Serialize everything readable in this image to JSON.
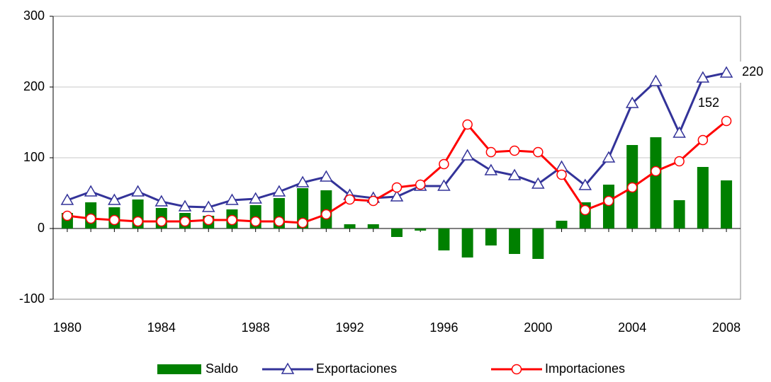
{
  "chart_data": {
    "type": "combo",
    "x": [
      1980,
      1981,
      1982,
      1983,
      1984,
      1985,
      1986,
      1987,
      1988,
      1989,
      1990,
      1991,
      1992,
      1993,
      1994,
      1995,
      1996,
      1997,
      1998,
      1999,
      2000,
      2001,
      2002,
      2003,
      2004,
      2005,
      2006,
      2007,
      2008
    ],
    "xlim": [
      1979.4,
      2008.6
    ],
    "xticks": [
      1980,
      1984,
      1988,
      1992,
      1996,
      2000,
      2004,
      2008
    ],
    "ylim": [
      -100,
      300
    ],
    "yticks": [
      -100,
      0,
      100,
      200,
      300
    ],
    "grid": true,
    "legend": "bottom",
    "series": [
      {
        "name": "Saldo",
        "type": "bar",
        "color": "#008000",
        "values": [
          22,
          37,
          30,
          41,
          29,
          22,
          18,
          27,
          33,
          43,
          57,
          54,
          6,
          6,
          -12,
          -3,
          -31,
          -41,
          -24,
          -36,
          -43,
          11,
          37,
          62,
          118,
          129,
          40,
          87,
          68
        ]
      },
      {
        "name": "Exportaciones",
        "type": "line",
        "marker": "triangle",
        "color": "#333399",
        "data_labels": "last",
        "values": [
          40,
          52,
          40,
          52,
          38,
          31,
          30,
          40,
          42,
          52,
          65,
          73,
          47,
          43,
          45,
          60,
          60,
          103,
          82,
          75,
          63,
          87,
          61,
          100,
          177,
          208,
          135,
          213,
          220
        ]
      },
      {
        "name": "Importaciones",
        "type": "line",
        "marker": "circle",
        "color": "#ff0000",
        "data_labels": "last",
        "values": [
          18,
          14,
          12,
          10,
          10,
          10,
          12,
          12,
          10,
          10,
          8,
          20,
          41,
          39,
          58,
          62,
          91,
          147,
          108,
          110,
          108,
          76,
          26,
          39,
          58,
          81,
          95,
          125,
          152
        ]
      }
    ]
  }
}
